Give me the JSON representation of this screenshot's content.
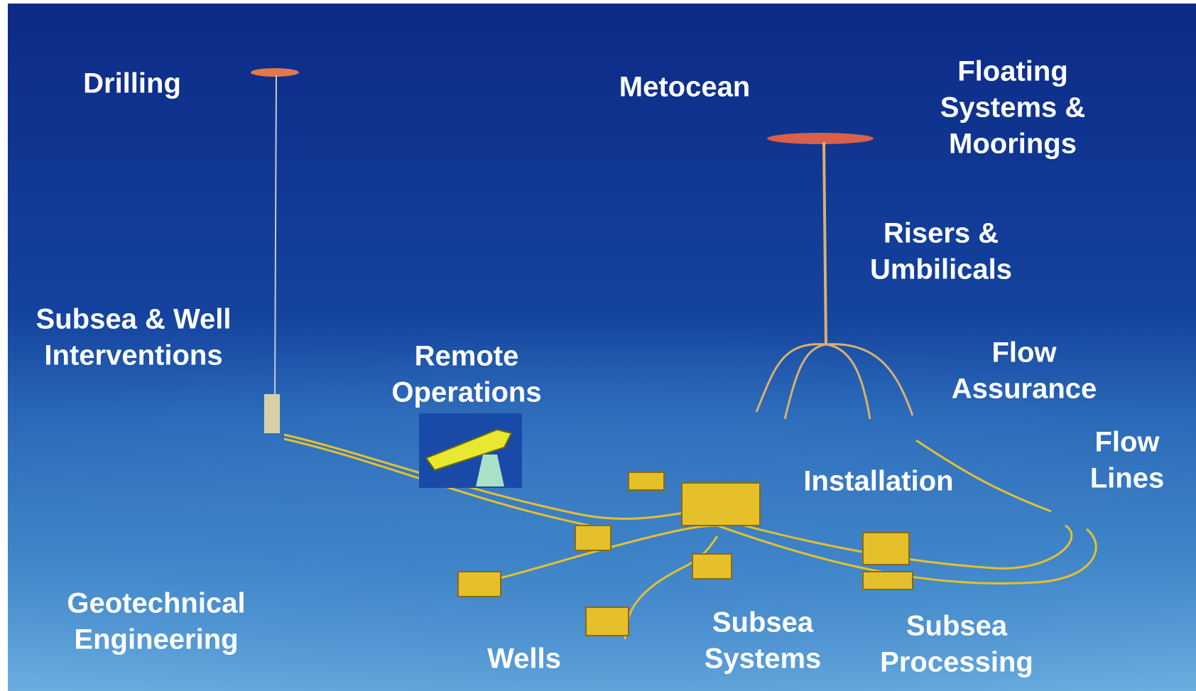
{
  "labels": [
    {
      "lines": [
        "Drilling"
      ]
    },
    {
      "lines": [
        "Metocean"
      ]
    },
    {
      "lines": [
        "Floating",
        "Systems &",
        "Moorings"
      ]
    },
    {
      "lines": [
        "Risers &",
        "Umbilicals"
      ]
    },
    {
      "lines": [
        "Subsea & Well",
        "Interventions"
      ]
    },
    {
      "lines": [
        "Remote",
        "Operations"
      ]
    },
    {
      "lines": [
        "Flow",
        "Assurance"
      ]
    },
    {
      "lines": [
        "Flow",
        "Lines"
      ]
    },
    {
      "lines": [
        "Installation"
      ]
    },
    {
      "lines": [
        "Geotechnical",
        "Engineering"
      ]
    },
    {
      "lines": [
        "Wells"
      ]
    },
    {
      "lines": [
        "Subsea",
        "Systems"
      ]
    },
    {
      "lines": [
        "Subsea",
        "Processing"
      ]
    }
  ]
}
